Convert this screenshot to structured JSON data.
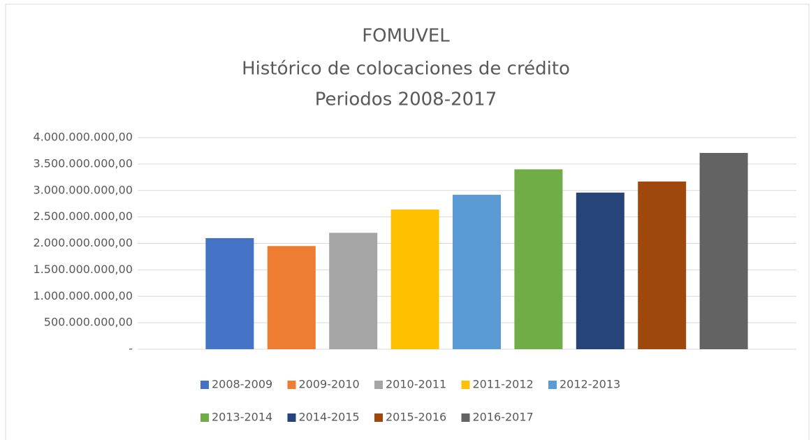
{
  "chart_data": {
    "type": "bar",
    "title": "FOMUVEL",
    "subtitle": [
      "Histórico de colocaciones de crédito",
      "Periodos 2008-2017"
    ],
    "categories": [
      null
    ],
    "series": [
      {
        "name": "2008-2009",
        "color": "#4472c4",
        "values": [
          2100000000
        ]
      },
      {
        "name": "2009-2010",
        "color": "#ed7d31",
        "values": [
          1950000000
        ]
      },
      {
        "name": "2010-2011",
        "color": "#a5a5a5",
        "values": [
          2200000000
        ]
      },
      {
        "name": "2011-2012",
        "color": "#ffc000",
        "values": [
          2640000000
        ]
      },
      {
        "name": "2012-2013",
        "color": "#5b9bd5",
        "values": [
          2920000000
        ]
      },
      {
        "name": "2013-2014",
        "color": "#70ad47",
        "values": [
          3400000000
        ]
      },
      {
        "name": "2014-2015",
        "color": "#264478",
        "values": [
          2960000000
        ]
      },
      {
        "name": "2015-2016",
        "color": "#9e480e",
        "values": [
          3170000000
        ]
      },
      {
        "name": "2016-2017",
        "color": "#636363",
        "values": [
          3710000000
        ]
      }
    ],
    "ylim": [
      0,
      4000000000
    ],
    "yticks": [
      {
        "value": 0,
        "label": "-"
      },
      {
        "value": 500000000,
        "label": "500.000.000,00"
      },
      {
        "value": 1000000000,
        "label": "1.000.000.000,00"
      },
      {
        "value": 1500000000,
        "label": "1.500.000.000,00"
      },
      {
        "value": 2000000000,
        "label": "2.000.000.000,00"
      },
      {
        "value": 2500000000,
        "label": "2.500.000.000,00"
      },
      {
        "value": 3000000000,
        "label": "3.000.000.000,00"
      },
      {
        "value": 3500000000,
        "label": "3.500.000.000,00"
      },
      {
        "value": 4000000000,
        "label": "4.000.000.000,00"
      }
    ],
    "grid": true,
    "legend": "bottom"
  }
}
